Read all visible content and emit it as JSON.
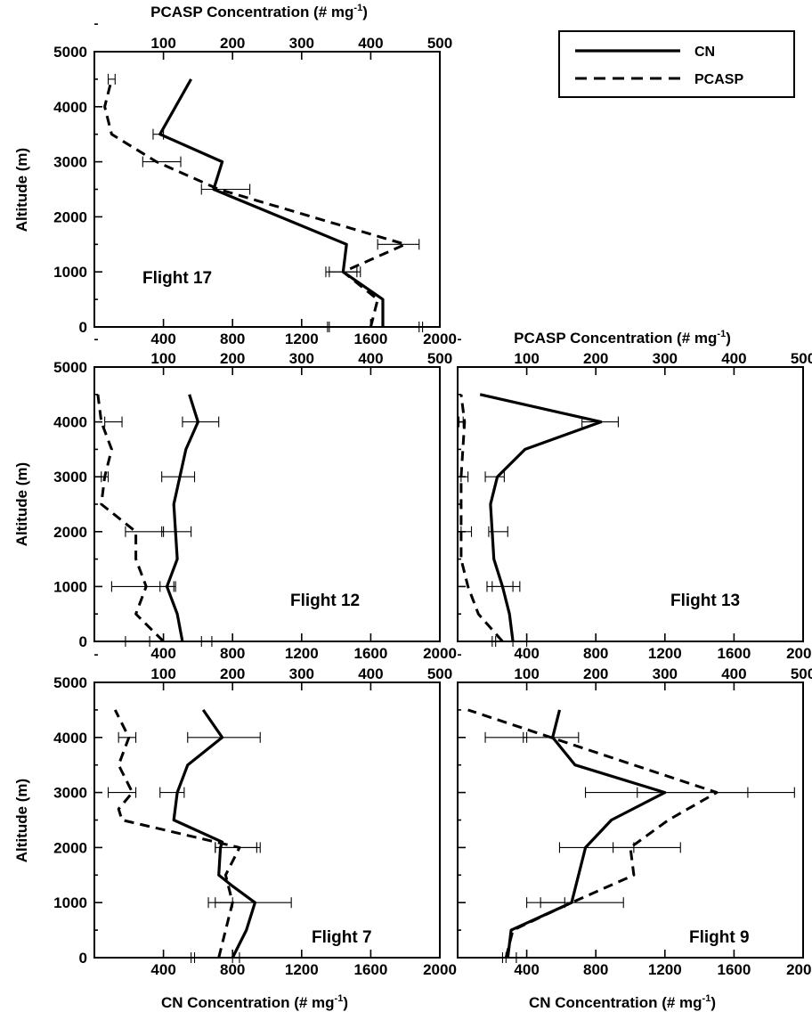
{
  "legend": {
    "cn_label": "CN",
    "pcasp_label": "PCASP"
  },
  "texts": {
    "pcasp_axis_title": "PCASP Concentration (# mg",
    "pcasp_axis_title_sup": "-1",
    "pcasp_axis_title_end": ")",
    "cn_axis_title": "CN Concentration (# mg",
    "cn_axis_title_sup": "-1",
    "cn_axis_title_end": ")",
    "y_axis_title": "Altitude (m)"
  },
  "chart_data": [
    {
      "type": "line",
      "panel": "top-left",
      "annotation": "Flight 17",
      "ylabel": "Altitude (m)",
      "ylim": [
        0,
        5000
      ],
      "yticks": [
        0,
        1000,
        2000,
        3000,
        4000,
        5000
      ],
      "cn_xlim": [
        0,
        2000
      ],
      "cn_xticks": [
        400,
        800,
        1200,
        1600,
        2000
      ],
      "pcasp_xlim": [
        0,
        500
      ],
      "pcasp_xticks": [
        100,
        200,
        300,
        400,
        500
      ],
      "pcasp_axis_title": true,
      "series": [
        {
          "name": "CN",
          "axis": "cn",
          "x": [
            1670,
            1670,
            1440,
            1460,
            690,
            740,
            380,
            560
          ],
          "y": [
            0,
            500,
            1000,
            1500,
            2500,
            3000,
            3500,
            4500
          ],
          "err": [
            [
              0,
              1350,
              1900
            ],
            [
              1000,
              1340,
              1520
            ]
          ]
        },
        {
          "name": "PCASP",
          "axis": "pcasp",
          "x": [
            400,
            410,
            360,
            450,
            180,
            90,
            25,
            15,
            25
          ],
          "y": [
            0,
            500,
            1000,
            1500,
            2500,
            3000,
            3500,
            4000,
            4500
          ],
          "err": [
            [
              0,
              340,
              470
            ],
            [
              1000,
              340,
              385
            ],
            [
              1500,
              410,
              470
            ],
            [
              2500,
              155,
              225
            ],
            [
              3000,
              70,
              125
            ],
            [
              3500,
              85,
              100
            ],
            [
              4500,
              20,
              30
            ]
          ]
        }
      ]
    },
    {
      "type": "line",
      "panel": "middle-left",
      "annotation": "Flight 12",
      "ylabel": "Altitude (m)",
      "ylim": [
        0,
        5000
      ],
      "yticks": [
        0,
        1000,
        2000,
        3000,
        4000,
        5000
      ],
      "cn_xlim": [
        0,
        2000
      ],
      "cn_xticks": [
        400,
        800,
        1200,
        1600,
        2000
      ],
      "pcasp_xlim": [
        0,
        500
      ],
      "pcasp_xticks": [
        100,
        200,
        300,
        400,
        500
      ],
      "series": [
        {
          "name": "CN",
          "axis": "cn",
          "x": [
            510,
            480,
            420,
            480,
            460,
            530,
            600,
            550
          ],
          "y": [
            0,
            500,
            1000,
            1500,
            2500,
            3500,
            4000,
            4500
          ],
          "err": [
            [
              0,
              320,
              680
            ],
            [
              1000,
              380,
              470
            ],
            [
              2000,
              390,
              560
            ],
            [
              3000,
              390,
              580
            ],
            [
              4000,
              510,
              720
            ]
          ]
        },
        {
          "name": "PCASP",
          "axis": "pcasp",
          "x": [
            100,
            60,
            75,
            60,
            60,
            10,
            15,
            25,
            10,
            5
          ],
          "y": [
            0,
            500,
            1000,
            1500,
            2000,
            2500,
            3000,
            3500,
            4000,
            4500
          ],
          "err": [
            [
              0,
              45,
              155
            ],
            [
              1000,
              25,
              115
            ],
            [
              2000,
              45,
              100
            ],
            [
              3000,
              10,
              20
            ],
            [
              4000,
              15,
              40
            ]
          ]
        }
      ]
    },
    {
      "type": "line",
      "panel": "middle-right",
      "annotation": "Flight 13",
      "ylim": [
        0,
        5000
      ],
      "yticks": [
        0,
        1000,
        2000,
        3000,
        4000,
        5000
      ],
      "cn_xlim": [
        0,
        2000
      ],
      "cn_xticks": [
        400,
        800,
        1200,
        1600,
        2000
      ],
      "pcasp_xlim": [
        0,
        500
      ],
      "pcasp_xticks": [
        100,
        200,
        300,
        400,
        500
      ],
      "pcasp_axis_title": true,
      "series": [
        {
          "name": "CN",
          "axis": "cn",
          "x": [
            320,
            300,
            260,
            210,
            190,
            230,
            390,
            830,
            130
          ],
          "y": [
            0,
            500,
            1000,
            1500,
            2500,
            3000,
            3500,
            4000,
            4500
          ],
          "err": [
            [
              0,
              220,
              400
            ],
            [
              1000,
              170,
              360
            ],
            [
              2000,
              180,
              290
            ],
            [
              3000,
              160,
              270
            ],
            [
              4000,
              720,
              930
            ]
          ]
        },
        {
          "name": "PCASP",
          "axis": "pcasp",
          "x": [
            65,
            30,
            15,
            5,
            5,
            5,
            10,
            5
          ],
          "y": [
            0,
            500,
            1000,
            1500,
            2500,
            3000,
            4000,
            4500
          ],
          "err": [
            [
              0,
              50,
              80
            ],
            [
              1000,
              50,
              80
            ],
            [
              2000,
              5,
              20
            ],
            [
              3000,
              5,
              15
            ],
            [
              4000,
              2,
              8
            ]
          ]
        }
      ]
    },
    {
      "type": "line",
      "panel": "bottom-left",
      "annotation": "Flight 7",
      "xlabel": "CN Concentration (# mg-1)",
      "ylabel": "Altitude (m)",
      "ylim": [
        0,
        5000
      ],
      "yticks": [
        0,
        1000,
        2000,
        3000,
        4000,
        5000
      ],
      "cn_xlim": [
        0,
        2000
      ],
      "cn_xticks": [
        400,
        800,
        1200,
        1600,
        2000
      ],
      "pcasp_xlim": [
        0,
        500
      ],
      "pcasp_xticks": [
        100,
        200,
        300,
        400,
        500
      ],
      "series": [
        {
          "name": "CN",
          "axis": "cn",
          "x": [
            800,
            880,
            930,
            800,
            720,
            730,
            740,
            460,
            480,
            540,
            740,
            630
          ],
          "y": [
            0,
            500,
            1000,
            1300,
            1500,
            2000,
            2100,
            2500,
            3000,
            3500,
            4000,
            4500
          ],
          "err": [
            [
              0,
              560,
              840
            ],
            [
              1000,
              700,
              1140
            ],
            [
              2000,
              700,
              940
            ],
            [
              3000,
              380,
              520
            ],
            [
              4000,
              540,
              960
            ]
          ]
        },
        {
          "name": "PCASP",
          "axis": "pcasp",
          "x": [
            180,
            190,
            200,
            190,
            210,
            40,
            35,
            55,
            35,
            50,
            30
          ],
          "y": [
            0,
            500,
            1000,
            1500,
            2000,
            2500,
            2700,
            3000,
            3500,
            4000,
            4500
          ],
          "err": [
            [
              0,
              145,
              200
            ],
            [
              1000,
              165,
              200
            ],
            [
              2000,
              175,
              240
            ],
            [
              3000,
              20,
              60
            ],
            [
              4000,
              35,
              60
            ]
          ]
        }
      ]
    },
    {
      "type": "line",
      "panel": "bottom-right",
      "annotation": "Flight 9",
      "xlabel": "CN Concentration (# mg-1)",
      "ylim": [
        0,
        5000
      ],
      "yticks": [
        0,
        1000,
        2000,
        3000,
        4000,
        5000
      ],
      "cn_xlim": [
        0,
        2000
      ],
      "cn_xticks": [
        400,
        800,
        1200,
        1600,
        2000
      ],
      "pcasp_xlim": [
        0,
        500
      ],
      "pcasp_xticks": [
        100,
        200,
        300,
        400,
        500
      ],
      "series": [
        {
          "name": "CN",
          "axis": "cn",
          "x": [
            290,
            310,
            660,
            740,
            890,
            1200,
            680,
            550,
            590
          ],
          "y": [
            0,
            500,
            1000,
            2000,
            2500,
            3000,
            3500,
            4000,
            4500
          ],
          "err": [
            [
              0,
              260,
              340
            ],
            [
              1000,
              400,
              960
            ],
            [
              2000,
              590,
              1290
            ],
            [
              3000,
              740,
              1950
            ],
            [
              4000,
              380,
              700
            ]
          ]
        },
        {
          "name": "PCASP",
          "axis": "pcasp",
          "x": [
            70,
            80,
            165,
            255,
            250,
            305,
            375,
            15
          ],
          "y": [
            0,
            500,
            1000,
            1500,
            2000,
            2500,
            3000,
            4500
          ],
          "err": [
            [
              0,
              70,
              85
            ],
            [
              1000,
              120,
              155
            ],
            [
              2000,
              225,
              255
            ],
            [
              3000,
              260,
              420
            ],
            [
              4000,
              40,
              100
            ]
          ]
        }
      ]
    }
  ]
}
